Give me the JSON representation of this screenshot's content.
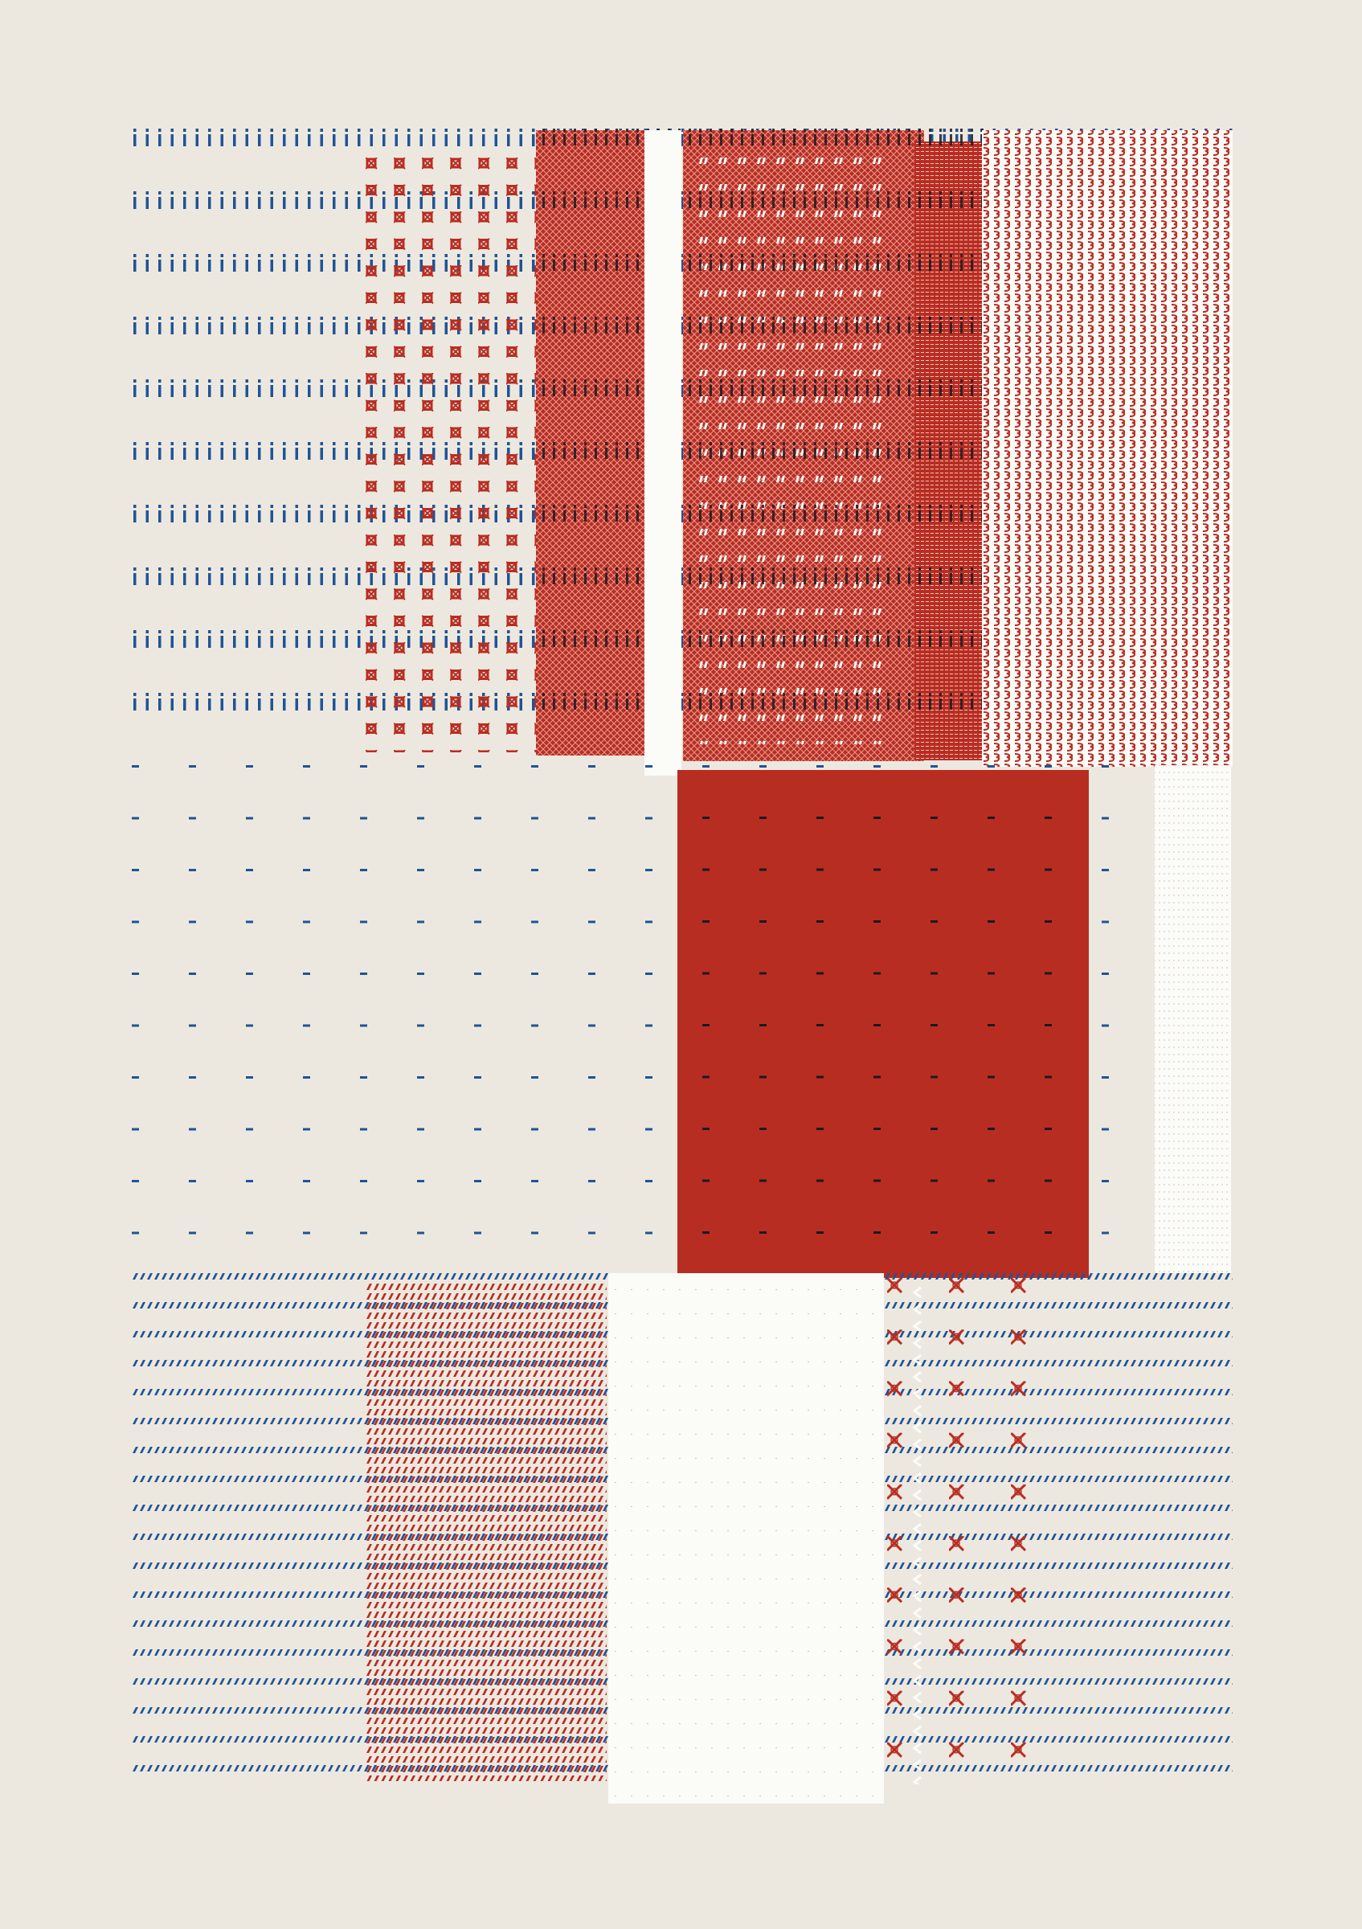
{
  "palette": {
    "paper": "#ede8df",
    "blue": "#1f5496",
    "red": "#b82d22",
    "white": "#fbfbf8",
    "ink": "#1a1a22"
  },
  "artwork": {
    "kind": "generative textile-like pattern composition",
    "glyph_patterns": [
      {
        "name": "blue-i-rows",
        "glyph": "i",
        "color": "blue"
      },
      {
        "name": "red-star-grid",
        "glyph": "¤",
        "color": "red"
      },
      {
        "name": "red-crosshatch-field",
        "glyph": "x",
        "color": "red"
      },
      {
        "name": "red-quote-field",
        "glyph": "\"",
        "color": "red"
      },
      {
        "name": "red-swirl-field",
        "glyph": "3",
        "color": "red"
      },
      {
        "name": "blue-dash-grid",
        "glyph": "-",
        "color": "blue"
      },
      {
        "name": "red-solid-block",
        "glyph": "",
        "color": "red"
      },
      {
        "name": "white-vertical-strip",
        "glyph": "ı",
        "color": "white"
      },
      {
        "name": "blue-slash-rows",
        "glyph": "/",
        "color": "blue"
      },
      {
        "name": "red-slash-field",
        "glyph": "/",
        "color": "red"
      },
      {
        "name": "white-block",
        "glyph": "",
        "color": "white"
      },
      {
        "name": "red-x-grid",
        "glyph": "※",
        "color": "red"
      }
    ]
  }
}
